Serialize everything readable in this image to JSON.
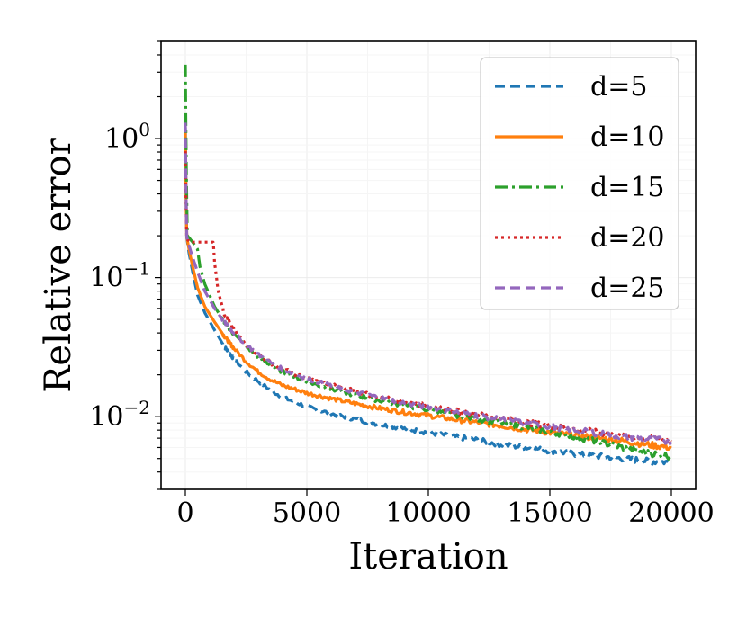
{
  "chart_data": {
    "type": "line",
    "title": "",
    "xlabel": "Iteration",
    "ylabel": "Relative error",
    "yscale": "log",
    "xlim": [
      -1000,
      21000
    ],
    "ylim": [
      0.003,
      5.0
    ],
    "grid": true,
    "legend_position": "top-right",
    "x_ticks": [
      {
        "value": 0,
        "label": "0"
      },
      {
        "value": 5000,
        "label": "5000"
      },
      {
        "value": 10000,
        "label": "10000"
      },
      {
        "value": 15000,
        "label": "15000"
      },
      {
        "value": 20000,
        "label": "20000"
      }
    ],
    "y_ticks": [
      {
        "value": 0.01,
        "base": "10",
        "exp": "−2"
      },
      {
        "value": 0.1,
        "base": "10",
        "exp": "−1"
      },
      {
        "value": 1,
        "base": "10",
        "exp": "0"
      }
    ],
    "series": [
      {
        "name": "d=5",
        "color": "#1f77b4",
        "dash": "dashed",
        "points": [
          [
            0,
            1.2
          ],
          [
            50,
            0.2
          ],
          [
            150,
            0.15
          ],
          [
            300,
            0.11
          ],
          [
            500,
            0.075
          ],
          [
            800,
            0.056
          ],
          [
            1200,
            0.042
          ],
          [
            1600,
            0.032
          ],
          [
            2000,
            0.026
          ],
          [
            2500,
            0.021
          ],
          [
            3000,
            0.018
          ],
          [
            3500,
            0.0155
          ],
          [
            4000,
            0.0138
          ],
          [
            5000,
            0.0118
          ],
          [
            6000,
            0.0105
          ],
          [
            7000,
            0.0096
          ],
          [
            8000,
            0.0088
          ],
          [
            9000,
            0.0082
          ],
          [
            10000,
            0.0077
          ],
          [
            11000,
            0.0072
          ],
          [
            12000,
            0.0068
          ],
          [
            13000,
            0.0063
          ],
          [
            14000,
            0.006
          ],
          [
            15000,
            0.0057
          ],
          [
            16000,
            0.0054
          ],
          [
            17000,
            0.0052
          ],
          [
            18000,
            0.005
          ],
          [
            19000,
            0.0048
          ],
          [
            20000,
            0.0047
          ]
        ]
      },
      {
        "name": "d=10",
        "color": "#ff7f0e",
        "dash": "solid",
        "points": [
          [
            0,
            1.1
          ],
          [
            50,
            0.2
          ],
          [
            150,
            0.16
          ],
          [
            300,
            0.12
          ],
          [
            500,
            0.085
          ],
          [
            800,
            0.062
          ],
          [
            1200,
            0.048
          ],
          [
            1600,
            0.038
          ],
          [
            2000,
            0.031
          ],
          [
            2500,
            0.025
          ],
          [
            3000,
            0.021
          ],
          [
            3500,
            0.0185
          ],
          [
            4000,
            0.0168
          ],
          [
            5000,
            0.0148
          ],
          [
            6000,
            0.0135
          ],
          [
            7000,
            0.0124
          ],
          [
            8000,
            0.0115
          ],
          [
            9000,
            0.0108
          ],
          [
            10000,
            0.0102
          ],
          [
            11000,
            0.0096
          ],
          [
            12000,
            0.0091
          ],
          [
            13000,
            0.0086
          ],
          [
            14000,
            0.0081
          ],
          [
            15000,
            0.0077
          ],
          [
            16000,
            0.0073
          ],
          [
            17000,
            0.007
          ],
          [
            18000,
            0.0067
          ],
          [
            19000,
            0.0063
          ],
          [
            20000,
            0.006
          ]
        ]
      },
      {
        "name": "d=15",
        "color": "#2ca02c",
        "dash": "dashdot",
        "points": [
          [
            0,
            3.4
          ],
          [
            40,
            0.6
          ],
          [
            80,
            0.2
          ],
          [
            300,
            0.18
          ],
          [
            500,
            0.16
          ],
          [
            600,
            0.12
          ],
          [
            800,
            0.09
          ],
          [
            1200,
            0.062
          ],
          [
            1600,
            0.048
          ],
          [
            2000,
            0.039
          ],
          [
            2500,
            0.032
          ],
          [
            3000,
            0.027
          ],
          [
            3500,
            0.0235
          ],
          [
            4000,
            0.021
          ],
          [
            5000,
            0.0178
          ],
          [
            6000,
            0.0158
          ],
          [
            7000,
            0.0143
          ],
          [
            8000,
            0.0131
          ],
          [
            9000,
            0.0121
          ],
          [
            10000,
            0.0112
          ],
          [
            11000,
            0.0104
          ],
          [
            12000,
            0.0096
          ],
          [
            13000,
            0.009
          ],
          [
            14000,
            0.0084
          ],
          [
            15000,
            0.0078
          ],
          [
            16000,
            0.0072
          ],
          [
            17000,
            0.0066
          ],
          [
            18000,
            0.006
          ],
          [
            19000,
            0.0055
          ],
          [
            20000,
            0.0052
          ]
        ]
      },
      {
        "name": "d=20",
        "color": "#d62728",
        "dash": "dotted",
        "points": [
          [
            0,
            0.9
          ],
          [
            50,
            0.19
          ],
          [
            200,
            0.18
          ],
          [
            1000,
            0.18
          ],
          [
            1150,
            0.18
          ],
          [
            1200,
            0.13
          ],
          [
            1350,
            0.08
          ],
          [
            1600,
            0.055
          ],
          [
            2000,
            0.042
          ],
          [
            2500,
            0.033
          ],
          [
            3000,
            0.028
          ],
          [
            3500,
            0.0245
          ],
          [
            4000,
            0.022
          ],
          [
            5000,
            0.0188
          ],
          [
            6000,
            0.0168
          ],
          [
            7000,
            0.0152
          ],
          [
            8000,
            0.0139
          ],
          [
            9000,
            0.0128
          ],
          [
            10000,
            0.0119
          ],
          [
            11000,
            0.0111
          ],
          [
            12000,
            0.0104
          ],
          [
            13000,
            0.0097
          ],
          [
            14000,
            0.0091
          ],
          [
            15000,
            0.0086
          ],
          [
            16000,
            0.0081
          ],
          [
            17000,
            0.0077
          ],
          [
            18000,
            0.0073
          ],
          [
            19000,
            0.007
          ],
          [
            20000,
            0.0068
          ]
        ]
      },
      {
        "name": "d=25",
        "color": "#9467bd",
        "dash": "dashed",
        "points": [
          [
            0,
            1.3
          ],
          [
            50,
            0.2
          ],
          [
            150,
            0.17
          ],
          [
            300,
            0.14
          ],
          [
            500,
            0.11
          ],
          [
            800,
            0.08
          ],
          [
            1200,
            0.06
          ],
          [
            1600,
            0.048
          ],
          [
            2000,
            0.04
          ],
          [
            2500,
            0.033
          ],
          [
            3000,
            0.028
          ],
          [
            3500,
            0.0245
          ],
          [
            4000,
            0.022
          ],
          [
            5000,
            0.0188
          ],
          [
            6000,
            0.0167
          ],
          [
            7000,
            0.015
          ],
          [
            8000,
            0.0137
          ],
          [
            9000,
            0.0126
          ],
          [
            10000,
            0.0117
          ],
          [
            11000,
            0.0109
          ],
          [
            12000,
            0.0102
          ],
          [
            13000,
            0.0096
          ],
          [
            14000,
            0.009
          ],
          [
            15000,
            0.0085
          ],
          [
            16000,
            0.008
          ],
          [
            17000,
            0.0076
          ],
          [
            18000,
            0.0072
          ],
          [
            19000,
            0.0069
          ],
          [
            20000,
            0.0067
          ]
        ]
      }
    ]
  }
}
